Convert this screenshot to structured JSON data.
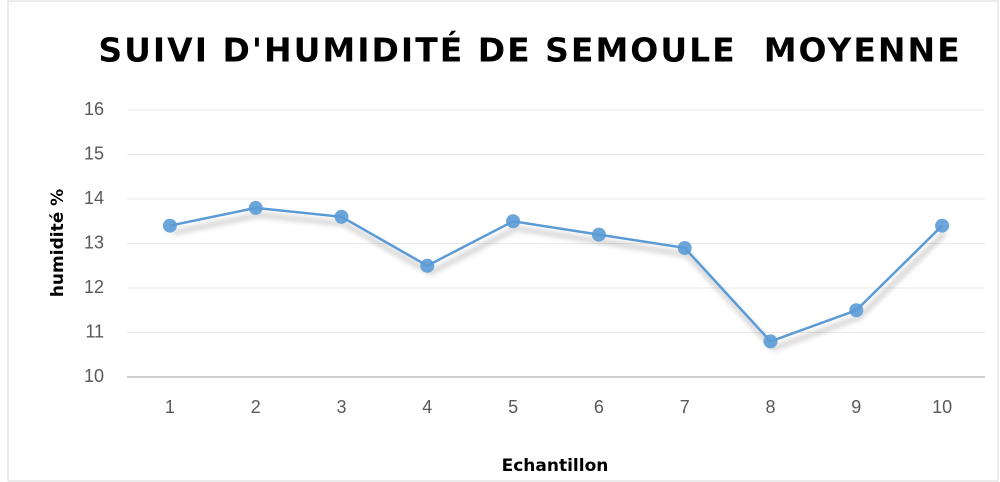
{
  "chart_data": {
    "type": "line",
    "title": "SUIVI D'HUMIDITÉ DE SEMOULE  MOYENNE",
    "x_label": "Echantillon",
    "y_label": "humidité %",
    "categories": [
      "1",
      "2",
      "3",
      "4",
      "5",
      "6",
      "7",
      "8",
      "9",
      "10"
    ],
    "series": [
      {
        "name": "humidité",
        "color": "#5b9bd5",
        "values": [
          13.4,
          13.8,
          13.6,
          12.5,
          13.5,
          13.2,
          12.9,
          10.8,
          11.5,
          13.4
        ]
      }
    ],
    "ylim": [
      10,
      16
    ],
    "yticks": [
      10,
      11,
      12,
      13,
      14,
      15,
      16
    ],
    "grid": true
  }
}
